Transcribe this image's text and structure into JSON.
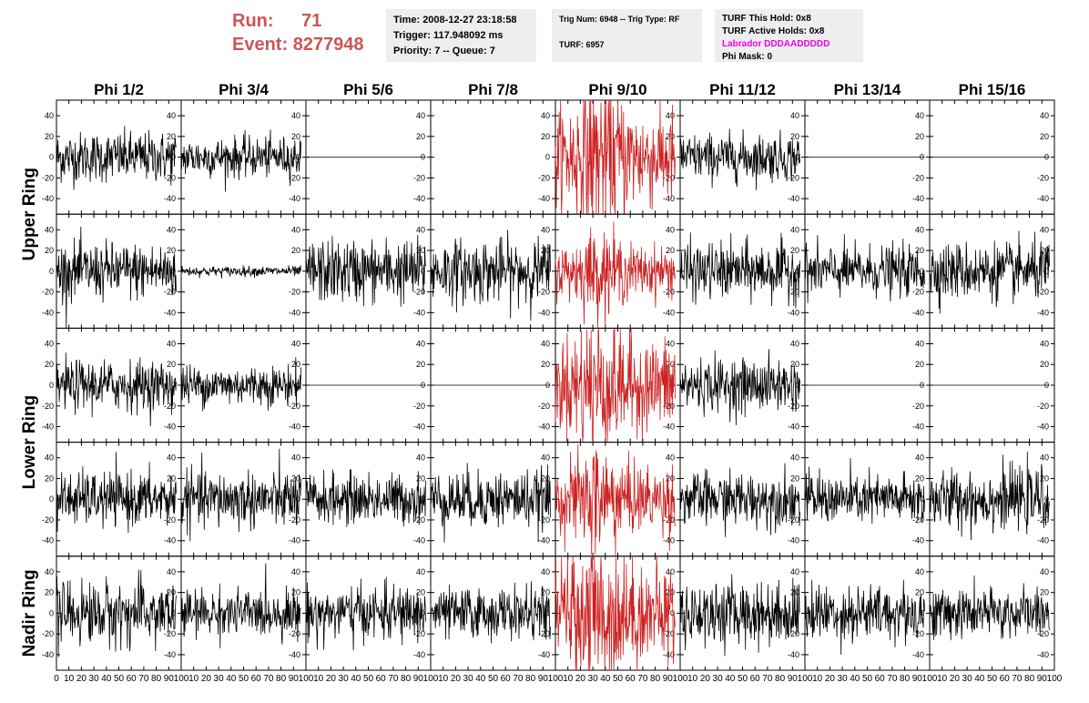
{
  "header": {
    "run_label": "Run:",
    "run_value": "71",
    "event_label": "Event:",
    "event_value": "8277948",
    "time": "Time: 2008-12-27 23:18:58",
    "trigger": "Trigger: 117.948092 ms",
    "priority": "Priority: 7 -- Queue: 7",
    "trig_num": "Trig Num: 6948 -- Trig Type: RF",
    "turf": "TURF: 6957",
    "turf_this_hold": "TURF This Hold: 0x8",
    "turf_active_holds": "TURF Active Holds: 0x8",
    "labrador": "Labrador DDDAADDDDD",
    "phi_mask": "Phi Mask: 0"
  },
  "colors": {
    "normal": "#000000",
    "triggered": "#cc2222",
    "run_text": "#cc5555",
    "labrador_text": "#ee00ee"
  },
  "chart_data": {
    "type": "line",
    "columns": [
      "Phi 1/2",
      "Phi 3/4",
      "Phi 5/6",
      "Phi 7/8",
      "Phi 9/10",
      "Phi 11/12",
      "Phi 13/14",
      "Phi 15/16"
    ],
    "ring_labels": [
      "Upper Ring",
      "Lower Ring",
      "Nadir Ring"
    ],
    "rows": 5,
    "triggered_column": 4,
    "xlim": [
      0,
      100
    ],
    "ylim": [
      -55,
      55
    ],
    "yticks": [
      -40,
      -20,
      0,
      20,
      40
    ],
    "xticks": [
      0,
      10,
      20,
      30,
      40,
      50,
      60,
      70,
      80,
      90,
      100
    ],
    "samples_per_trace": 256,
    "trace_x_range": [
      0,
      96
    ],
    "amplitude": [
      [
        15,
        12,
        0,
        null,
        30,
        14,
        0,
        0
      ],
      [
        17,
        3,
        19,
        19,
        15,
        17,
        15,
        17
      ],
      [
        15,
        12,
        0,
        0,
        27,
        16,
        0,
        0
      ],
      [
        16,
        17,
        15,
        17,
        20,
        16,
        15,
        18
      ],
      [
        19,
        14,
        16,
        15,
        29,
        19,
        17,
        15
      ]
    ]
  }
}
